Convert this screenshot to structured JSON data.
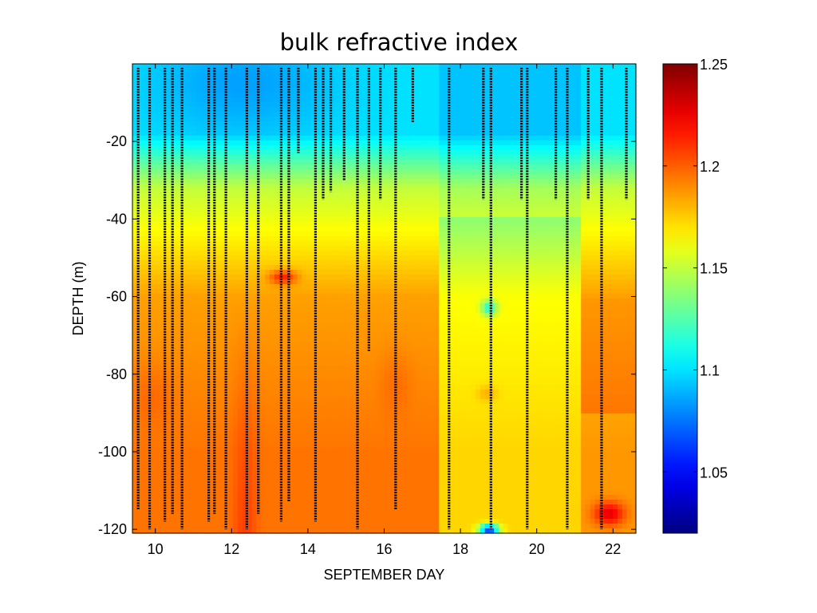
{
  "chart_data": {
    "type": "heatmap",
    "title": "bulk refractive index",
    "xlabel": "SEPTEMBER DAY",
    "ylabel": "DEPTH (m)",
    "xlim": [
      9.4,
      22.6
    ],
    "ylim": [
      -121,
      0
    ],
    "xticks": [
      10,
      12,
      14,
      16,
      18,
      20,
      22
    ],
    "yticks": [
      -20,
      -40,
      -60,
      -80,
      -100,
      -120
    ],
    "colorbar": {
      "clim": [
        1.02,
        1.25
      ],
      "ticks": [
        1.05,
        1.1,
        1.15,
        1.2,
        1.25
      ],
      "colormap": "jet"
    },
    "profile_marker_color": "#000000",
    "profiles": [
      {
        "day": 9.55,
        "max_depth": -115
      },
      {
        "day": 9.85,
        "max_depth": -120
      },
      {
        "day": 10.25,
        "max_depth": -118
      },
      {
        "day": 10.45,
        "max_depth": -116
      },
      {
        "day": 10.7,
        "max_depth": -120
      },
      {
        "day": 11.4,
        "max_depth": -118
      },
      {
        "day": 11.55,
        "max_depth": -116
      },
      {
        "day": 11.85,
        "max_depth": -120
      },
      {
        "day": 12.4,
        "max_depth": -120
      },
      {
        "day": 12.7,
        "max_depth": -116
      },
      {
        "day": 13.3,
        "max_depth": -118
      },
      {
        "day": 13.5,
        "max_depth": -113
      },
      {
        "day": 13.75,
        "max_depth": -23
      },
      {
        "day": 14.2,
        "max_depth": -118
      },
      {
        "day": 14.4,
        "max_depth": -35
      },
      {
        "day": 14.6,
        "max_depth": -33
      },
      {
        "day": 14.95,
        "max_depth": -30
      },
      {
        "day": 15.3,
        "max_depth": -120
      },
      {
        "day": 15.6,
        "max_depth": -74
      },
      {
        "day": 15.9,
        "max_depth": -35
      },
      {
        "day": 16.3,
        "max_depth": -115
      },
      {
        "day": 16.75,
        "max_depth": -15
      },
      {
        "day": 17.7,
        "max_depth": -120
      },
      {
        "day": 18.6,
        "max_depth": -35
      },
      {
        "day": 18.8,
        "max_depth": -120
      },
      {
        "day": 19.6,
        "max_depth": -35
      },
      {
        "day": 19.75,
        "max_depth": -120
      },
      {
        "day": 20.5,
        "max_depth": -35
      },
      {
        "day": 20.8,
        "max_depth": -120
      },
      {
        "day": 21.35,
        "max_depth": -35
      },
      {
        "day": 21.7,
        "max_depth": -120
      },
      {
        "day": 22.35,
        "max_depth": -35
      }
    ]
  }
}
